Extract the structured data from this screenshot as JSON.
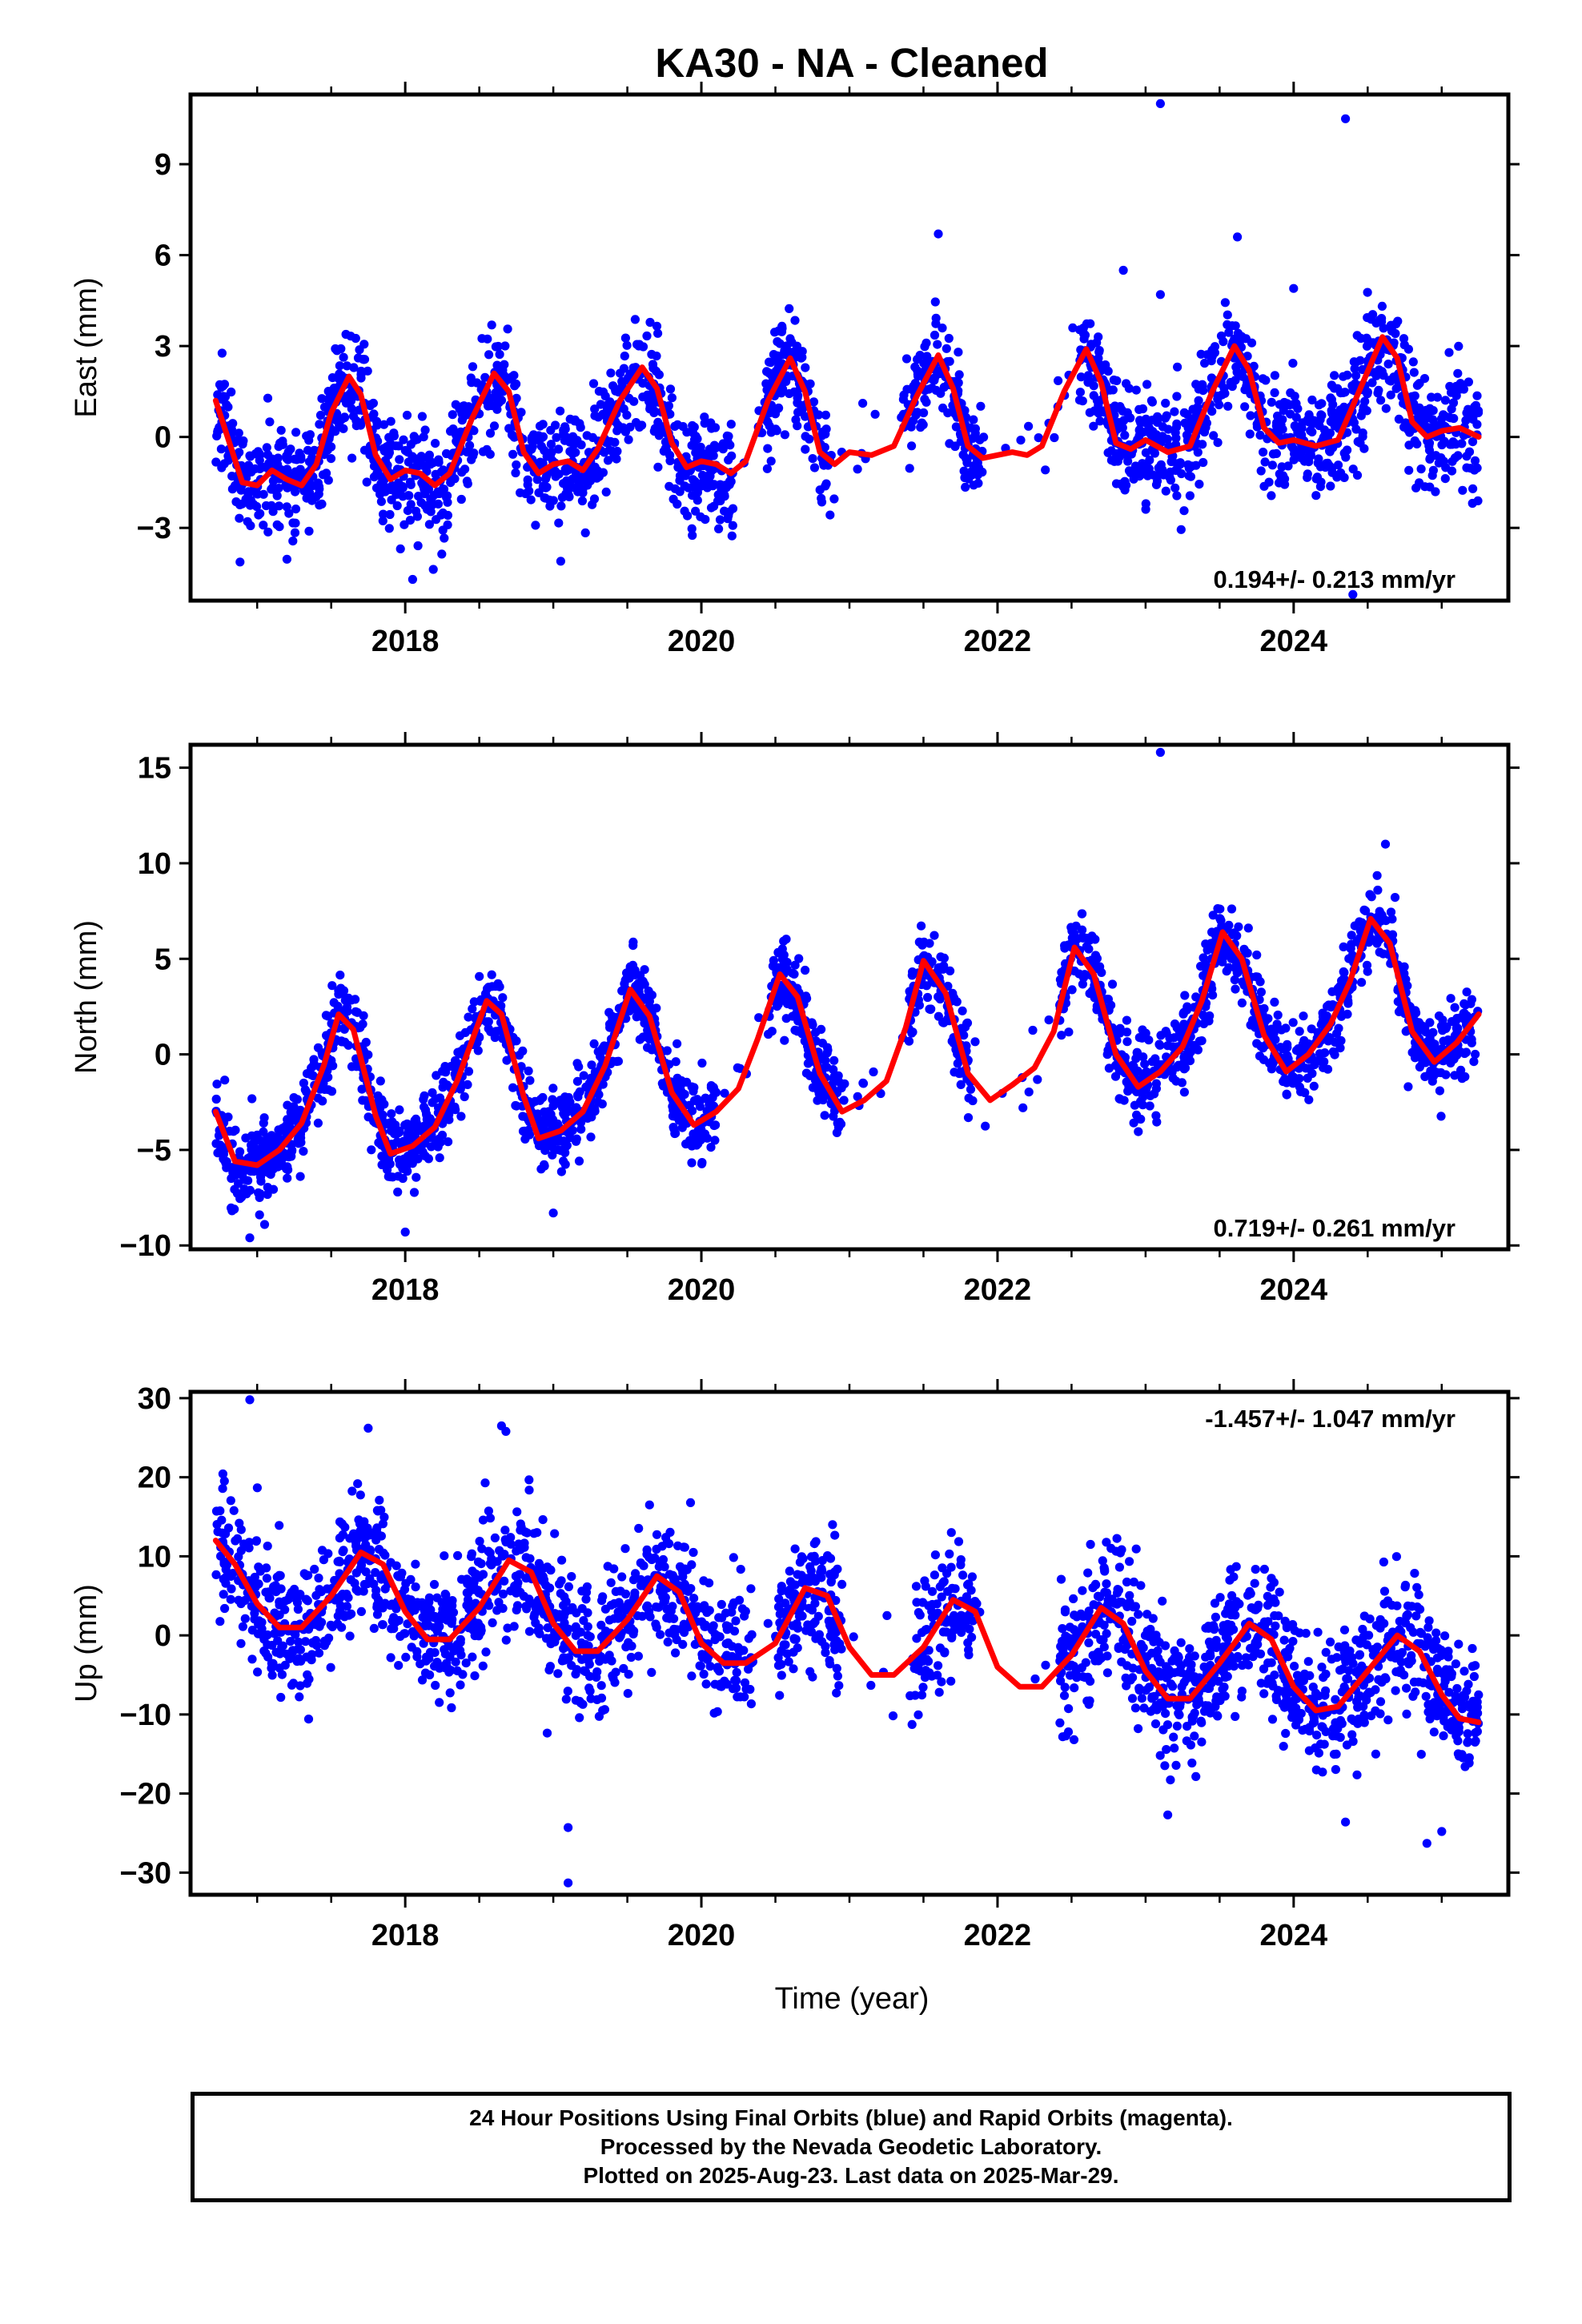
{
  "title": "KA30  - NA - Cleaned",
  "xlabel": "Time (year)",
  "footer": {
    "line1": "24 Hour Positions Using Final Orbits (blue) and Rapid Orbits (magenta).",
    "line2": "Processed by the Nevada Geodetic Laboratory.",
    "line3": "Plotted on 2025-Aug-23. Last data on 2025-Mar-29."
  },
  "colors": {
    "points": "#0000ff",
    "model": "#ff0000",
    "frame": "#000000"
  },
  "chart_data": [
    {
      "type": "scatter",
      "panel": "east",
      "ylabel": "East (mm)",
      "rate_label": "0.194+/- 0.213 mm/yr",
      "rate_position": "bottom-right",
      "xlim": [
        2016.55,
        2025.45
      ],
      "ylim": [
        -5.4,
        11.3
      ],
      "yticks": [
        -3,
        0,
        3,
        6,
        9
      ],
      "ytick_labels": [
        "−3",
        "0",
        "3",
        "6",
        "9"
      ],
      "xticks": [
        2018,
        2020,
        2022,
        2024
      ],
      "xtick_labels": [
        "2018",
        "2020",
        "2022",
        "2024"
      ],
      "model": {
        "x": [
          2016.72,
          2016.9,
          2017.0,
          2017.1,
          2017.2,
          2017.3,
          2017.4,
          2017.5,
          2017.62,
          2017.7,
          2017.8,
          2017.9,
          2018.0,
          2018.1,
          2018.2,
          2018.3,
          2018.45,
          2018.6,
          2018.7,
          2018.8,
          2018.9,
          2019.0,
          2019.1,
          2019.2,
          2019.3,
          2019.45,
          2019.6,
          2019.7,
          2019.8,
          2019.9,
          2020.0,
          2020.1,
          2020.2,
          2020.3,
          2020.45,
          2020.6,
          2020.7,
          2020.8,
          2020.9,
          2021.0,
          2021.15,
          2021.3,
          2021.45,
          2021.6,
          2021.7,
          2021.8,
          2021.9,
          2022.0,
          2022.1,
          2022.2,
          2022.3,
          2022.45,
          2022.6,
          2022.7,
          2022.8,
          2022.9,
          2023.0,
          2023.15,
          2023.3,
          2023.45,
          2023.6,
          2023.7,
          2023.8,
          2023.9,
          2024.0,
          2024.15,
          2024.3,
          2024.45,
          2024.6,
          2024.7,
          2024.8,
          2024.9,
          2025.0,
          2025.12,
          2025.25
        ],
        "y": [
          1.2,
          -1.5,
          -1.6,
          -1.1,
          -1.4,
          -1.6,
          -0.9,
          0.8,
          2.0,
          1.4,
          -0.6,
          -1.4,
          -1.1,
          -1.2,
          -1.6,
          -1.2,
          0.6,
          2.1,
          1.5,
          -0.5,
          -1.2,
          -0.9,
          -0.8,
          -1.1,
          -0.4,
          1.2,
          2.3,
          1.6,
          -0.2,
          -1.0,
          -0.8,
          -0.9,
          -1.2,
          -0.8,
          1.2,
          2.6,
          1.5,
          -0.5,
          -0.9,
          -0.5,
          -0.6,
          -0.3,
          1.3,
          2.7,
          1.6,
          -0.3,
          -0.7,
          -0.6,
          -0.5,
          -0.6,
          -0.3,
          1.5,
          2.9,
          1.8,
          -0.2,
          -0.4,
          -0.1,
          -0.5,
          -0.3,
          1.5,
          3.0,
          2.2,
          0.3,
          -0.2,
          -0.1,
          -0.3,
          -0.1,
          1.6,
          3.3,
          2.6,
          0.5,
          0.0,
          0.2,
          0.3,
          0.0
        ]
      },
      "gaps": [
        [
          2020.22,
          2020.38
        ],
        [
          2020.88,
          2021.35
        ],
        [
          2021.9,
          2022.55
        ]
      ],
      "scatter": {
        "n_per_year": 300,
        "noise_sd": 0.9,
        "seed": 11
      },
      "outliers": {
        "x": [
          2023.1,
          2024.35,
          2023.62,
          2021.6,
          2023.1,
          2022.85,
          2018.05,
          2019.05,
          2024.0,
          2024.4
        ],
        "y": [
          11.0,
          10.5,
          6.6,
          6.7,
          4.7,
          5.5,
          -4.7,
          -4.1,
          4.9,
          -5.2
        ]
      }
    },
    {
      "type": "scatter",
      "panel": "north",
      "ylabel": "North (mm)",
      "rate_label": "0.719+/- 0.261 mm/yr",
      "rate_position": "bottom-right",
      "xlim": [
        2016.55,
        2025.45
      ],
      "ylim": [
        -10.2,
        16.2
      ],
      "yticks": [
        -10,
        -5,
        0,
        5,
        10,
        15
      ],
      "ytick_labels": [
        "−10",
        "−5",
        "0",
        "5",
        "10",
        "15"
      ],
      "xticks": [
        2018,
        2020,
        2022,
        2024
      ],
      "xtick_labels": [
        "2018",
        "2020",
        "2022",
        "2024"
      ],
      "model": {
        "x": [
          2016.72,
          2016.85,
          2017.0,
          2017.15,
          2017.3,
          2017.45,
          2017.55,
          2017.65,
          2017.8,
          2017.9,
          2018.05,
          2018.2,
          2018.35,
          2018.55,
          2018.65,
          2018.8,
          2018.9,
          2019.05,
          2019.2,
          2019.35,
          2019.52,
          2019.65,
          2019.8,
          2019.95,
          2020.1,
          2020.25,
          2020.38,
          2020.53,
          2020.65,
          2020.8,
          2020.95,
          2021.1,
          2021.25,
          2021.38,
          2021.5,
          2021.65,
          2021.8,
          2021.95,
          2022.1,
          2022.25,
          2022.38,
          2022.52,
          2022.65,
          2022.8,
          2022.95,
          2023.1,
          2023.25,
          2023.38,
          2023.52,
          2023.65,
          2023.8,
          2023.95,
          2024.1,
          2024.25,
          2024.38,
          2024.52,
          2024.65,
          2024.8,
          2024.95,
          2025.1,
          2025.25
        ],
        "y": [
          -3.0,
          -5.6,
          -5.8,
          -5.0,
          -3.6,
          -0.6,
          2.1,
          1.3,
          -3.2,
          -5.2,
          -4.8,
          -3.8,
          -1.4,
          2.8,
          2.1,
          -2.2,
          -4.4,
          -4.0,
          -3.0,
          -0.6,
          3.4,
          2.0,
          -2.0,
          -3.7,
          -3.0,
          -1.8,
          0.8,
          4.2,
          3.0,
          -1.0,
          -3.0,
          -2.4,
          -1.4,
          1.4,
          4.9,
          3.2,
          -1.0,
          -2.4,
          -1.6,
          -0.7,
          1.2,
          5.6,
          4.2,
          0.0,
          -1.7,
          -0.9,
          0.4,
          2.8,
          6.4,
          5.0,
          1.0,
          -0.9,
          0.0,
          1.6,
          3.8,
          7.1,
          5.8,
          1.2,
          -0.4,
          0.6,
          2.1
        ]
      },
      "gaps": [
        [
          2020.1,
          2020.45
        ],
        [
          2020.95,
          2021.4
        ],
        [
          2021.85,
          2022.42
        ]
      ],
      "scatter": {
        "n_per_year": 300,
        "noise_sd": 1.05,
        "seed": 23
      },
      "outliers": {
        "x": [
          2023.1,
          2016.95,
          2017.05,
          2024.62,
          2018.0,
          2019.0
        ],
        "y": [
          15.8,
          -9.6,
          -8.9,
          11.0,
          -9.3,
          -8.3
        ]
      }
    },
    {
      "type": "scatter",
      "panel": "up",
      "ylabel": "Up (mm)",
      "rate_label": "-1.457+/- 1.047 mm/yr",
      "rate_position": "top-right",
      "xlim": [
        2016.55,
        2025.45
      ],
      "ylim": [
        -32.8,
        30.8
      ],
      "yticks": [
        -30,
        -20,
        -10,
        0,
        10,
        20,
        30
      ],
      "ytick_labels": [
        "−30",
        "−20",
        "−10",
        "0",
        "10",
        "20",
        "30"
      ],
      "xticks": [
        2018,
        2020,
        2022,
        2024
      ],
      "xtick_labels": [
        "2018",
        "2020",
        "2022",
        "2024"
      ],
      "model": {
        "x": [
          2016.72,
          2016.85,
          2017.0,
          2017.15,
          2017.3,
          2017.5,
          2017.7,
          2017.85,
          2018.0,
          2018.15,
          2018.3,
          2018.5,
          2018.7,
          2018.85,
          2019.0,
          2019.15,
          2019.3,
          2019.5,
          2019.7,
          2019.85,
          2020.0,
          2020.15,
          2020.3,
          2020.5,
          2020.7,
          2020.85,
          2021.0,
          2021.15,
          2021.3,
          2021.5,
          2021.7,
          2021.85,
          2022.0,
          2022.15,
          2022.3,
          2022.5,
          2022.7,
          2022.85,
          2023.0,
          2023.15,
          2023.3,
          2023.5,
          2023.7,
          2023.85,
          2024.0,
          2024.15,
          2024.3,
          2024.5,
          2024.7,
          2024.85,
          2025.0,
          2025.12,
          2025.25
        ],
        "y": [
          12.0,
          9.0,
          4.0,
          1.0,
          1.0,
          5.0,
          10.5,
          9.0,
          3.0,
          -0.5,
          -0.5,
          3.5,
          9.5,
          8.0,
          1.5,
          -2.0,
          -2.0,
          2.0,
          7.5,
          5.5,
          -1.0,
          -3.5,
          -3.5,
          -1.0,
          6.0,
          5.0,
          -1.5,
          -5.0,
          -5.0,
          -1.5,
          4.5,
          3.0,
          -4.0,
          -6.5,
          -6.5,
          -2.5,
          3.5,
          1.5,
          -4.5,
          -8.0,
          -8.0,
          -3.5,
          1.5,
          -0.5,
          -6.5,
          -9.5,
          -9.0,
          -4.5,
          0.0,
          -2.0,
          -7.5,
          -10.5,
          -11.0
        ]
      },
      "gaps": [
        [
          2020.35,
          2020.5
        ],
        [
          2020.95,
          2021.4
        ],
        [
          2021.85,
          2022.42
        ]
      ],
      "scatter": {
        "n_per_year": 300,
        "noise_sd": 4.3,
        "seed": 37
      },
      "outliers": {
        "x": [
          2016.95,
          2019.1,
          2019.1,
          2018.65,
          2017.75,
          2018.68,
          2023.15,
          2024.35,
          2024.9,
          2025.0
        ],
        "y": [
          29.8,
          -31.3,
          -24.3,
          26.5,
          26.2,
          25.8,
          -22.7,
          -23.6,
          -26.3,
          -24.8
        ]
      }
    }
  ]
}
